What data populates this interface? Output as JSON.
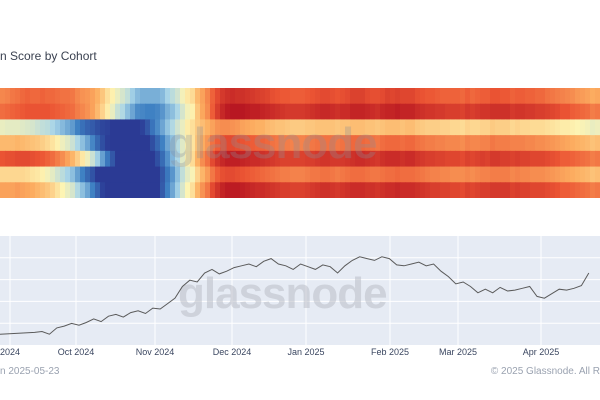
{
  "title": "n Score by Cohort",
  "footer": {
    "left": "n 2025-05-23",
    "right": "© 2025 Glassnode. All R"
  },
  "watermark": "glassnode",
  "colors": {
    "line": "#5a5a5a",
    "plot_bg": "#e6ebf4",
    "grid": "#ffffff",
    "heat_scale": [
      "#2b3a94",
      "#3d7fc2",
      "#a9d5e8",
      "#fdf4b3",
      "#fcae61",
      "#ec5634",
      "#b10e1f"
    ]
  },
  "chart_data": [
    {
      "type": "heatmap",
      "title": "n Score by Cohort",
      "rows": 7,
      "columns": 120,
      "value_range": [
        0,
        1
      ],
      "grid": false,
      "values": [
        [
          0.74,
          0.75,
          0.77,
          0.78,
          0.8,
          0.81,
          0.8,
          0.8,
          0.81,
          0.8,
          0.8,
          0.79,
          0.78,
          0.78,
          0.77,
          0.74,
          0.72,
          0.71,
          0.69,
          0.66,
          0.61,
          0.55,
          0.51,
          0.46,
          0.42,
          0.38,
          0.32,
          0.28,
          0.26,
          0.26,
          0.26,
          0.26,
          0.28,
          0.33,
          0.37,
          0.41,
          0.48,
          0.53,
          0.56,
          0.64,
          0.69,
          0.74,
          0.81,
          0.86,
          0.9,
          0.92,
          0.93,
          0.92,
          0.92,
          0.91,
          0.9,
          0.89,
          0.88,
          0.87,
          0.85,
          0.84,
          0.83,
          0.83,
          0.82,
          0.82,
          0.82,
          0.83,
          0.84,
          0.85,
          0.86,
          0.86,
          0.85,
          0.84,
          0.85,
          0.86,
          0.88,
          0.88,
          0.88,
          0.86,
          0.85,
          0.85,
          0.86,
          0.88,
          0.87,
          0.88,
          0.87,
          0.87,
          0.87,
          0.85,
          0.84,
          0.83,
          0.83,
          0.82,
          0.81,
          0.81,
          0.81,
          0.81,
          0.8,
          0.82,
          0.8,
          0.81,
          0.82,
          0.82,
          0.84,
          0.84,
          0.83,
          0.83,
          0.81,
          0.82,
          0.82,
          0.81,
          0.81,
          0.8,
          0.8,
          0.78,
          0.77,
          0.76,
          0.75,
          0.74,
          0.73,
          0.71,
          0.7,
          0.69,
          0.67,
          0.68
        ],
        [
          0.79,
          0.8,
          0.81,
          0.82,
          0.83,
          0.84,
          0.84,
          0.84,
          0.84,
          0.84,
          0.83,
          0.82,
          0.81,
          0.8,
          0.79,
          0.76,
          0.74,
          0.72,
          0.69,
          0.64,
          0.58,
          0.52,
          0.46,
          0.39,
          0.35,
          0.29,
          0.24,
          0.19,
          0.18,
          0.17,
          0.17,
          0.18,
          0.21,
          0.26,
          0.29,
          0.34,
          0.42,
          0.48,
          0.51,
          0.61,
          0.68,
          0.73,
          0.82,
          0.89,
          0.94,
          0.97,
          0.98,
          0.98,
          0.98,
          0.97,
          0.96,
          0.96,
          0.95,
          0.94,
          0.93,
          0.92,
          0.91,
          0.9,
          0.9,
          0.9,
          0.9,
          0.91,
          0.92,
          0.93,
          0.94,
          0.94,
          0.93,
          0.92,
          0.93,
          0.93,
          0.95,
          0.95,
          0.95,
          0.94,
          0.93,
          0.92,
          0.94,
          0.95,
          0.95,
          0.96,
          0.95,
          0.95,
          0.95,
          0.93,
          0.92,
          0.91,
          0.91,
          0.9,
          0.9,
          0.89,
          0.89,
          0.89,
          0.88,
          0.9,
          0.89,
          0.9,
          0.91,
          0.91,
          0.92,
          0.92,
          0.92,
          0.92,
          0.9,
          0.91,
          0.91,
          0.9,
          0.9,
          0.89,
          0.89,
          0.88,
          0.87,
          0.86,
          0.84,
          0.84,
          0.82,
          0.81,
          0.8,
          0.79,
          0.76,
          0.77
        ],
        [
          0.46,
          0.45,
          0.45,
          0.45,
          0.44,
          0.43,
          0.42,
          0.4,
          0.38,
          0.37,
          0.34,
          0.31,
          0.28,
          0.25,
          0.22,
          0.17,
          0.13,
          0.1,
          0.08,
          0.05,
          0.03,
          0.02,
          0.0,
          0.0,
          0.0,
          0.0,
          0.0,
          0.0,
          0.02,
          0.07,
          0.14,
          0.19,
          0.24,
          0.3,
          0.35,
          0.41,
          0.46,
          0.52,
          0.55,
          0.6,
          0.63,
          0.66,
          0.69,
          0.72,
          0.73,
          0.73,
          0.72,
          0.71,
          0.69,
          0.68,
          0.67,
          0.66,
          0.66,
          0.64,
          0.63,
          0.62,
          0.62,
          0.61,
          0.6,
          0.6,
          0.6,
          0.61,
          0.61,
          0.62,
          0.62,
          0.62,
          0.62,
          0.61,
          0.62,
          0.62,
          0.63,
          0.63,
          0.63,
          0.62,
          0.62,
          0.61,
          0.62,
          0.63,
          0.63,
          0.63,
          0.62,
          0.63,
          0.63,
          0.61,
          0.6,
          0.59,
          0.59,
          0.59,
          0.58,
          0.58,
          0.57,
          0.57,
          0.56,
          0.58,
          0.57,
          0.57,
          0.58,
          0.58,
          0.6,
          0.59,
          0.59,
          0.59,
          0.57,
          0.58,
          0.57,
          0.57,
          0.56,
          0.56,
          0.56,
          0.55,
          0.54,
          0.53,
          0.52,
          0.52,
          0.51,
          0.5,
          0.49,
          0.48,
          0.46,
          0.47
        ],
        [
          0.64,
          0.64,
          0.64,
          0.65,
          0.64,
          0.63,
          0.62,
          0.61,
          0.59,
          0.57,
          0.54,
          0.51,
          0.47,
          0.44,
          0.4,
          0.34,
          0.29,
          0.24,
          0.18,
          0.11,
          0.05,
          0.01,
          0.0,
          0.0,
          0.0,
          0.0,
          0.0,
          0.0,
          0.0,
          0.0,
          0.05,
          0.11,
          0.17,
          0.24,
          0.29,
          0.36,
          0.44,
          0.51,
          0.54,
          0.62,
          0.67,
          0.71,
          0.78,
          0.82,
          0.85,
          0.86,
          0.86,
          0.85,
          0.84,
          0.83,
          0.82,
          0.81,
          0.81,
          0.8,
          0.78,
          0.77,
          0.76,
          0.76,
          0.75,
          0.75,
          0.75,
          0.76,
          0.77,
          0.78,
          0.78,
          0.78,
          0.78,
          0.77,
          0.78,
          0.78,
          0.8,
          0.8,
          0.8,
          0.79,
          0.78,
          0.77,
          0.79,
          0.8,
          0.8,
          0.8,
          0.79,
          0.8,
          0.8,
          0.78,
          0.77,
          0.76,
          0.76,
          0.75,
          0.75,
          0.74,
          0.74,
          0.74,
          0.73,
          0.75,
          0.74,
          0.74,
          0.75,
          0.75,
          0.77,
          0.76,
          0.76,
          0.76,
          0.75,
          0.75,
          0.75,
          0.74,
          0.74,
          0.73,
          0.73,
          0.72,
          0.71,
          0.7,
          0.69,
          0.68,
          0.67,
          0.66,
          0.65,
          0.64,
          0.62,
          0.63
        ],
        [
          0.84,
          0.85,
          0.85,
          0.86,
          0.86,
          0.86,
          0.85,
          0.84,
          0.83,
          0.81,
          0.79,
          0.76,
          0.73,
          0.69,
          0.65,
          0.59,
          0.53,
          0.47,
          0.4,
          0.32,
          0.23,
          0.15,
          0.07,
          0.0,
          0.0,
          0.0,
          0.0,
          0.0,
          0.0,
          0.0,
          0.0,
          0.05,
          0.12,
          0.2,
          0.27,
          0.34,
          0.44,
          0.52,
          0.56,
          0.66,
          0.73,
          0.78,
          0.86,
          0.91,
          0.94,
          0.96,
          0.96,
          0.96,
          0.95,
          0.94,
          0.93,
          0.93,
          0.92,
          0.91,
          0.9,
          0.89,
          0.88,
          0.88,
          0.88,
          0.88,
          0.88,
          0.89,
          0.89,
          0.9,
          0.91,
          0.91,
          0.9,
          0.9,
          0.9,
          0.91,
          0.92,
          0.93,
          0.93,
          0.92,
          0.91,
          0.9,
          0.92,
          0.93,
          0.93,
          0.93,
          0.92,
          0.93,
          0.93,
          0.91,
          0.9,
          0.89,
          0.89,
          0.88,
          0.88,
          0.87,
          0.87,
          0.87,
          0.86,
          0.88,
          0.87,
          0.88,
          0.89,
          0.88,
          0.9,
          0.9,
          0.89,
          0.89,
          0.88,
          0.89,
          0.88,
          0.88,
          0.87,
          0.87,
          0.87,
          0.86,
          0.85,
          0.84,
          0.82,
          0.82,
          0.81,
          0.8,
          0.79,
          0.78,
          0.76,
          0.77
        ],
        [
          0.57,
          0.57,
          0.57,
          0.57,
          0.57,
          0.56,
          0.54,
          0.53,
          0.51,
          0.48,
          0.45,
          0.41,
          0.37,
          0.33,
          0.29,
          0.23,
          0.17,
          0.11,
          0.06,
          0.0,
          0.0,
          0.0,
          0.0,
          0.0,
          0.0,
          0.0,
          0.0,
          0.0,
          0.0,
          0.0,
          0.0,
          0.0,
          0.07,
          0.15,
          0.21,
          0.29,
          0.38,
          0.45,
          0.49,
          0.58,
          0.65,
          0.7,
          0.77,
          0.82,
          0.85,
          0.86,
          0.86,
          0.85,
          0.84,
          0.83,
          0.82,
          0.81,
          0.8,
          0.79,
          0.78,
          0.77,
          0.76,
          0.76,
          0.75,
          0.75,
          0.75,
          0.76,
          0.77,
          0.77,
          0.78,
          0.78,
          0.77,
          0.76,
          0.77,
          0.78,
          0.79,
          0.79,
          0.79,
          0.78,
          0.77,
          0.77,
          0.78,
          0.79,
          0.79,
          0.8,
          0.79,
          0.79,
          0.79,
          0.78,
          0.77,
          0.76,
          0.75,
          0.75,
          0.74,
          0.74,
          0.73,
          0.73,
          0.73,
          0.74,
          0.73,
          0.74,
          0.75,
          0.75,
          0.76,
          0.76,
          0.76,
          0.76,
          0.74,
          0.75,
          0.74,
          0.74,
          0.73,
          0.73,
          0.73,
          0.72,
          0.71,
          0.7,
          0.69,
          0.68,
          0.67,
          0.66,
          0.65,
          0.64,
          0.62,
          0.63
        ],
        [
          0.69,
          0.69,
          0.69,
          0.7,
          0.69,
          0.68,
          0.67,
          0.65,
          0.63,
          0.61,
          0.58,
          0.54,
          0.5,
          0.46,
          0.42,
          0.35,
          0.29,
          0.24,
          0.17,
          0.1,
          0.02,
          0.0,
          0.0,
          0.0,
          0.0,
          0.0,
          0.0,
          0.0,
          0.0,
          0.0,
          0.0,
          0.0,
          0.08,
          0.17,
          0.24,
          0.32,
          0.42,
          0.5,
          0.55,
          0.65,
          0.72,
          0.77,
          0.86,
          0.91,
          0.95,
          0.97,
          0.97,
          0.97,
          0.96,
          0.95,
          0.94,
          0.93,
          0.93,
          0.92,
          0.91,
          0.9,
          0.89,
          0.89,
          0.88,
          0.88,
          0.88,
          0.89,
          0.9,
          0.91,
          0.92,
          0.92,
          0.91,
          0.9,
          0.91,
          0.92,
          0.93,
          0.93,
          0.93,
          0.92,
          0.92,
          0.91,
          0.92,
          0.93,
          0.93,
          0.94,
          0.93,
          0.93,
          0.93,
          0.92,
          0.91,
          0.9,
          0.89,
          0.89,
          0.88,
          0.88,
          0.87,
          0.87,
          0.86,
          0.88,
          0.87,
          0.88,
          0.89,
          0.89,
          0.9,
          0.9,
          0.9,
          0.9,
          0.88,
          0.89,
          0.88,
          0.88,
          0.87,
          0.87,
          0.87,
          0.86,
          0.85,
          0.84,
          0.82,
          0.82,
          0.81,
          0.8,
          0.79,
          0.78,
          0.76,
          0.77
        ]
      ]
    },
    {
      "type": "line",
      "grid": true,
      "x_tick_labels": [
        "2024",
        "Oct 2024",
        "Nov 2024",
        "Dec 2024",
        "Jan 2025",
        "Feb 2025",
        "Mar 2025",
        "Apr 2025"
      ],
      "x": [
        "2024-09-11",
        "2024-09-14",
        "2024-09-17",
        "2024-09-20",
        "2024-09-23",
        "2024-09-26",
        "2024-09-29",
        "2024-10-02",
        "2024-10-05",
        "2024-10-08",
        "2024-10-11",
        "2024-10-14",
        "2024-10-17",
        "2024-10-20",
        "2024-10-23",
        "2024-10-26",
        "2024-10-29",
        "2024-11-01",
        "2024-11-04",
        "2024-11-07",
        "2024-11-10",
        "2024-11-13",
        "2024-11-16",
        "2024-11-19",
        "2024-11-22",
        "2024-11-25",
        "2024-11-28",
        "2024-12-01",
        "2024-12-04",
        "2024-12-07",
        "2024-12-10",
        "2024-12-13",
        "2024-12-16",
        "2024-12-19",
        "2024-12-22",
        "2024-12-25",
        "2024-12-28",
        "2024-12-31",
        "2025-01-03",
        "2025-01-06",
        "2025-01-09",
        "2025-01-12",
        "2025-01-15",
        "2025-01-18",
        "2025-01-21",
        "2025-01-24",
        "2025-01-27",
        "2025-01-30",
        "2025-02-02",
        "2025-02-05",
        "2025-02-08",
        "2025-02-11",
        "2025-02-14",
        "2025-02-17",
        "2025-02-20",
        "2025-02-23",
        "2025-02-26",
        "2025-03-01",
        "2025-03-04",
        "2025-03-07",
        "2025-03-10",
        "2025-03-13",
        "2025-03-16",
        "2025-03-19",
        "2025-03-22",
        "2025-03-25",
        "2025-03-28",
        "2025-03-31",
        "2025-04-03",
        "2025-04-06",
        "2025-04-09",
        "2025-04-12",
        "2025-04-15",
        "2025-04-18",
        "2025-04-21",
        "2025-04-24"
      ],
      "values": [
        0.04,
        0.05,
        0.02,
        0.09,
        0.11,
        0.14,
        0.12,
        0.15,
        0.19,
        0.16,
        0.22,
        0.24,
        0.21,
        0.26,
        0.28,
        0.25,
        0.31,
        0.3,
        0.36,
        0.42,
        0.55,
        0.62,
        0.6,
        0.7,
        0.74,
        0.69,
        0.72,
        0.76,
        0.78,
        0.8,
        0.77,
        0.83,
        0.86,
        0.8,
        0.78,
        0.74,
        0.8,
        0.77,
        0.74,
        0.79,
        0.77,
        0.7,
        0.78,
        0.84,
        0.88,
        0.86,
        0.84,
        0.88,
        0.86,
        0.79,
        0.78,
        0.8,
        0.82,
        0.78,
        0.8,
        0.72,
        0.66,
        0.58,
        0.6,
        0.55,
        0.48,
        0.52,
        0.48,
        0.54,
        0.5,
        0.51,
        0.53,
        0.55,
        0.44,
        0.42,
        0.47,
        0.52,
        0.51,
        0.53,
        0.56,
        0.7
      ],
      "ylim": [
        0,
        1
      ]
    }
  ]
}
